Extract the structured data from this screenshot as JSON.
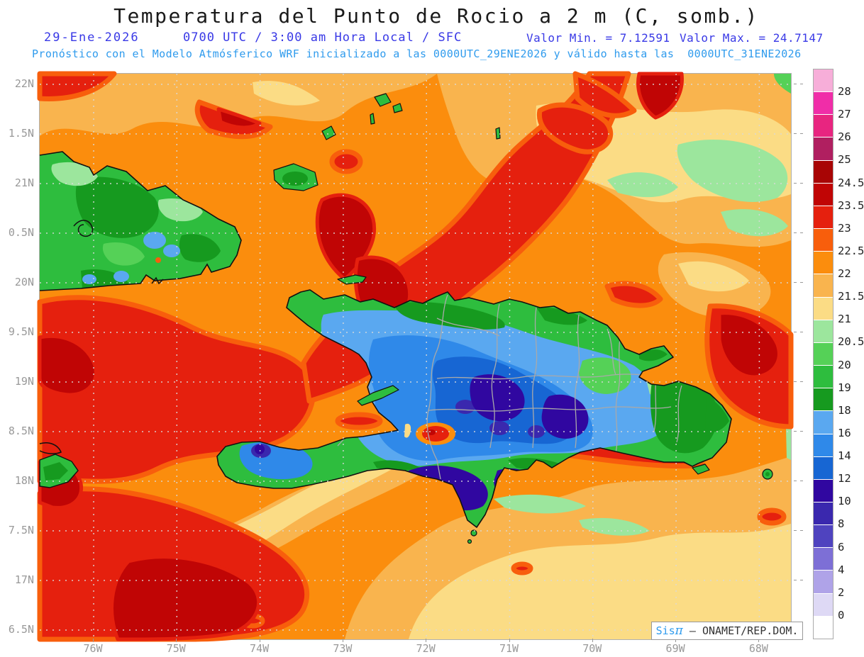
{
  "title": "Temperatura del Punto de Rocio a 2 m (C, somb.)",
  "header": {
    "date": "29-Ene-2026",
    "time": "0700 UTC / 3:00 am Hora Local / SFC",
    "valor_min": "Valor Min. = 7.12591",
    "valor_max": "Valor Max. = 24.7147",
    "model_line": "Pronóstico con el Modelo Atmósferico WRF inicializado a las 0000UTC_29ENE2026 y válido hasta las  0000UTC_31ENE2026"
  },
  "axes": {
    "lat_labels": [
      "22N",
      "1.5N",
      "21N",
      "0.5N",
      "20N",
      "9.5N",
      "19N",
      "8.5N",
      "18N",
      "7.5N",
      "17N",
      "6.5N"
    ],
    "lon_labels": [
      "76W",
      "75W",
      "74W",
      "73W",
      "72W",
      "71W",
      "70W",
      "69W",
      "68W"
    ]
  },
  "colorbar": {
    "labels": [
      "28",
      "27",
      "26",
      "25",
      "24.5",
      "23.5",
      "23",
      "22.5",
      "22",
      "21.5",
      "21",
      "20.5",
      "20",
      "19",
      "18",
      "16",
      "14",
      "12",
      "10",
      "8",
      "6",
      "4",
      "2",
      "0"
    ],
    "colors": [
      "#F7AED9",
      "#F02DA8",
      "#E82580",
      "#B01F60",
      "#A80505",
      "#C00505",
      "#E5200E",
      "#F85E0C",
      "#FB8D0D",
      "#F9B44E",
      "#FBDC85",
      "#9CE69D",
      "#55D157",
      "#2EBD3E",
      "#169A1F",
      "#5AA8F0",
      "#2F89E9",
      "#1766D3",
      "#3007A0",
      "#3A28AE",
      "#4F43BF",
      "#7D6FD6",
      "#AFA3E8",
      "#DED9F5",
      "#FFFFFF"
    ]
  },
  "watermark": {
    "prefix": "Sis",
    "pi": "π",
    "rest": " – ONAMET/REP.DOM."
  },
  "palette": {
    "ocean": "#FB8D0D",
    "orangered": "#F85E0C",
    "red": "#E5200E",
    "darkred": "#C00505",
    "darkred2": "#A80505",
    "lightorange": "#F9B44E",
    "pale": "#FBDC85",
    "mint": "#9CE69D",
    "midgreen": "#55D157",
    "green": "#2EBD3E",
    "darkgreen": "#169A1F",
    "lightblue": "#5AA8F0",
    "blue": "#2F89E9",
    "deepblue": "#1766D3",
    "indigo": "#3007A0",
    "violet": "#3A28AE",
    "gridline": "#DADADA",
    "coast": "#111111",
    "province": "#A9A9A9",
    "title_color": "#1A1A1A",
    "line2_color": "#3939E6",
    "line3_color": "#2F9BED",
    "axis_text": "#999999",
    "bar_text": "#222222",
    "watermark_text": "#333333"
  }
}
